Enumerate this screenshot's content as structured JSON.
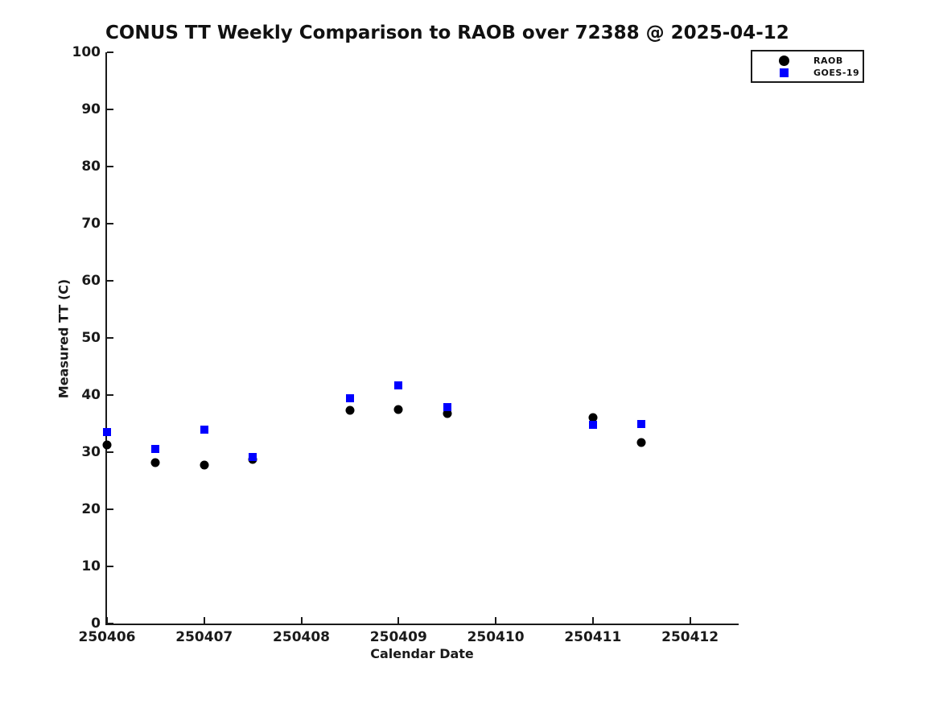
{
  "title": "CONUS TT Weekly Comparison to RAOB over 72388 @ 2025-04-12",
  "axes": {
    "xlabel": "Calendar Date",
    "ylabel": "Measured TT (C)"
  },
  "colors": {
    "raob": "#000000",
    "goes19": "#0000ff",
    "axis": "#1a1a1a",
    "background": "#ffffff"
  },
  "legend": {
    "items": [
      "RAOB",
      "GOES-19"
    ],
    "position": "outside-upper-right"
  },
  "chart_data": {
    "type": "scatter",
    "title": "CONUS TT Weekly Comparison to RAOB over 72388 @ 2025-04-12",
    "xlabel": "Calendar Date",
    "ylabel": "Measured TT (C)",
    "xlim": [
      250406,
      250412.5
    ],
    "ylim": [
      0,
      100
    ],
    "x_ticks": [
      250406,
      250407,
      250408,
      250409,
      250410,
      250411,
      250412
    ],
    "y_ticks": [
      0,
      10,
      20,
      30,
      40,
      50,
      60,
      70,
      80,
      90,
      100
    ],
    "grid": false,
    "tick_direction": "in",
    "legend_position": "outside-upper-right",
    "series": [
      {
        "name": "RAOB",
        "marker": "circle",
        "color": "#000000",
        "marker_size": 11,
        "points": [
          [
            250406.0,
            31.3
          ],
          [
            250406.5,
            28.2
          ],
          [
            250407.0,
            27.7
          ],
          [
            250407.5,
            28.7
          ],
          [
            250408.5,
            37.3
          ],
          [
            250409.0,
            37.4
          ],
          [
            250409.5,
            36.8
          ],
          [
            250411.0,
            36.1
          ],
          [
            250411.5,
            31.7
          ]
        ]
      },
      {
        "name": "GOES-19",
        "marker": "square",
        "color": "#0000ff",
        "marker_size": 10,
        "points": [
          [
            250406.0,
            33.5
          ],
          [
            250406.5,
            30.6
          ],
          [
            250407.0,
            34.0
          ],
          [
            250407.5,
            29.2
          ],
          [
            250408.5,
            39.5
          ],
          [
            250409.0,
            41.7
          ],
          [
            250409.5,
            37.9
          ],
          [
            250411.0,
            34.8
          ],
          [
            250411.5,
            35.0
          ]
        ]
      }
    ]
  }
}
